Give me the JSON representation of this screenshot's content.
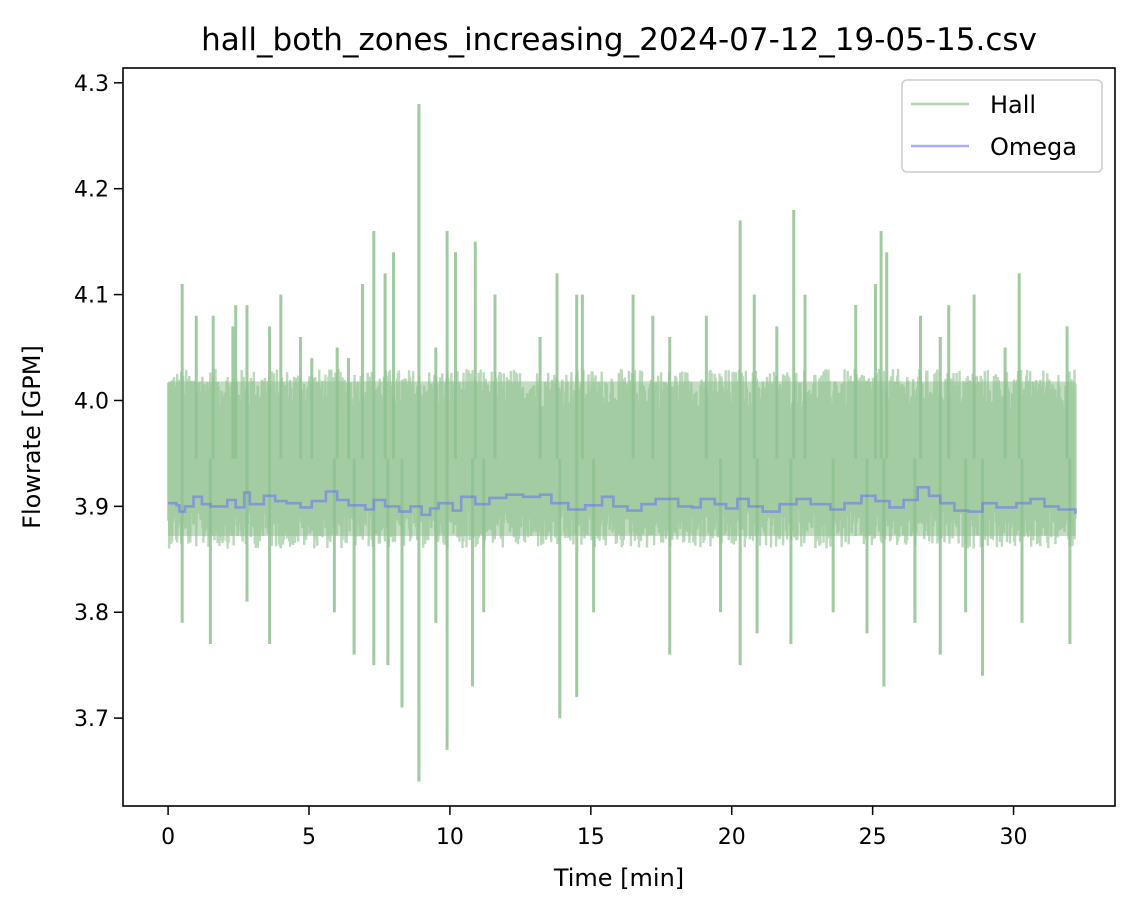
{
  "chart_data": {
    "type": "line",
    "title": "hall_both_zones_increasing_2024-07-12_19-05-15.csv",
    "xlabel": "Time [min]",
    "ylabel": "Flowrate [GPM]",
    "xlim": [
      -1.6,
      33.6
    ],
    "ylim": [
      3.617,
      4.314
    ],
    "xticks": [
      0,
      5,
      10,
      15,
      20,
      25,
      30
    ],
    "yticks": [
      3.7,
      3.8,
      3.9,
      4.0,
      4.1,
      4.2,
      4.3
    ],
    "xtick_labels": [
      "0",
      "5",
      "10",
      "15",
      "20",
      "25",
      "30"
    ],
    "ytick_labels": [
      "3.7",
      "3.8",
      "3.9",
      "4.0",
      "4.1",
      "4.2",
      "4.3"
    ],
    "grid": false,
    "legend": {
      "position": "top-right",
      "entries": [
        "Hall",
        "Omega"
      ]
    },
    "colors": {
      "Hall": "#8fc18f",
      "Omega": "#6666ff"
    },
    "hall_band": {
      "x_start": 0.0,
      "x_end": 32.2,
      "typical_low": 3.86,
      "typical_high": 4.03
    },
    "series": [
      {
        "name": "Hall",
        "note": "noisy signal; upper/lower spike peaks read from plot",
        "spikes_high": [
          [
            0.5,
            4.11
          ],
          [
            1.0,
            4.08
          ],
          [
            1.6,
            4.08
          ],
          [
            2.3,
            4.07
          ],
          [
            2.4,
            4.09
          ],
          [
            2.8,
            4.09
          ],
          [
            3.6,
            4.07
          ],
          [
            4.0,
            4.1
          ],
          [
            4.7,
            4.06
          ],
          [
            5.1,
            4.04
          ],
          [
            6.0,
            4.05
          ],
          [
            6.4,
            4.04
          ],
          [
            6.9,
            4.11
          ],
          [
            7.3,
            4.16
          ],
          [
            7.7,
            4.12
          ],
          [
            8.0,
            4.14
          ],
          [
            8.9,
            4.28
          ],
          [
            9.5,
            4.05
          ],
          [
            9.9,
            4.16
          ],
          [
            10.2,
            4.14
          ],
          [
            10.9,
            4.15
          ],
          [
            11.6,
            4.1
          ],
          [
            13.2,
            4.06
          ],
          [
            13.8,
            4.12
          ],
          [
            14.5,
            4.1
          ],
          [
            14.7,
            4.1
          ],
          [
            16.5,
            4.1
          ],
          [
            17.2,
            4.08
          ],
          [
            17.8,
            4.06
          ],
          [
            19.1,
            4.08
          ],
          [
            20.3,
            4.17
          ],
          [
            20.8,
            4.1
          ],
          [
            21.6,
            4.07
          ],
          [
            22.2,
            4.18
          ],
          [
            22.6,
            4.1
          ],
          [
            24.4,
            4.09
          ],
          [
            25.1,
            4.11
          ],
          [
            25.3,
            4.16
          ],
          [
            25.5,
            4.14
          ],
          [
            26.7,
            4.08
          ],
          [
            27.4,
            4.06
          ],
          [
            27.7,
            4.09
          ],
          [
            28.6,
            4.1
          ],
          [
            29.7,
            4.05
          ],
          [
            30.2,
            4.12
          ],
          [
            31.9,
            4.07
          ]
        ],
        "spikes_low": [
          [
            0.5,
            3.79
          ],
          [
            1.5,
            3.77
          ],
          [
            2.8,
            3.81
          ],
          [
            3.6,
            3.77
          ],
          [
            5.9,
            3.8
          ],
          [
            6.6,
            3.76
          ],
          [
            7.3,
            3.75
          ],
          [
            7.8,
            3.75
          ],
          [
            8.3,
            3.71
          ],
          [
            8.9,
            3.64
          ],
          [
            9.5,
            3.79
          ],
          [
            9.9,
            3.67
          ],
          [
            10.8,
            3.73
          ],
          [
            11.2,
            3.8
          ],
          [
            13.9,
            3.7
          ],
          [
            14.5,
            3.72
          ],
          [
            15.1,
            3.8
          ],
          [
            17.8,
            3.76
          ],
          [
            19.6,
            3.8
          ],
          [
            20.3,
            3.75
          ],
          [
            20.9,
            3.78
          ],
          [
            22.1,
            3.77
          ],
          [
            23.6,
            3.8
          ],
          [
            24.8,
            3.78
          ],
          [
            25.4,
            3.73
          ],
          [
            26.5,
            3.79
          ],
          [
            27.4,
            3.76
          ],
          [
            28.3,
            3.8
          ],
          [
            28.9,
            3.74
          ],
          [
            30.3,
            3.79
          ],
          [
            32.0,
            3.77
          ]
        ]
      },
      {
        "name": "Omega",
        "points": [
          [
            0.0,
            3.903
          ],
          [
            0.3,
            3.901
          ],
          [
            0.4,
            3.895
          ],
          [
            0.6,
            3.9
          ],
          [
            0.9,
            3.909
          ],
          [
            1.2,
            3.902
          ],
          [
            1.5,
            3.9
          ],
          [
            2.1,
            3.906
          ],
          [
            2.4,
            3.899
          ],
          [
            2.7,
            3.913
          ],
          [
            2.9,
            3.902
          ],
          [
            3.4,
            3.91
          ],
          [
            3.8,
            3.905
          ],
          [
            4.2,
            3.903
          ],
          [
            4.7,
            3.899
          ],
          [
            5.1,
            3.905
          ],
          [
            5.6,
            3.914
          ],
          [
            6.0,
            3.906
          ],
          [
            6.4,
            3.901
          ],
          [
            7.0,
            3.897
          ],
          [
            7.3,
            3.906
          ],
          [
            7.7,
            3.9
          ],
          [
            8.2,
            3.895
          ],
          [
            8.6,
            3.9
          ],
          [
            9.0,
            3.892
          ],
          [
            9.3,
            3.898
          ],
          [
            9.6,
            3.903
          ],
          [
            10.1,
            3.896
          ],
          [
            10.4,
            3.909
          ],
          [
            10.9,
            3.902
          ],
          [
            11.4,
            3.908
          ],
          [
            12.0,
            3.911
          ],
          [
            12.6,
            3.909
          ],
          [
            13.2,
            3.911
          ],
          [
            13.6,
            3.903
          ],
          [
            14.2,
            3.897
          ],
          [
            14.8,
            3.901
          ],
          [
            15.4,
            3.909
          ],
          [
            15.8,
            3.9
          ],
          [
            16.3,
            3.896
          ],
          [
            16.8,
            3.902
          ],
          [
            17.3,
            3.907
          ],
          [
            18.1,
            3.9
          ],
          [
            18.6,
            3.899
          ],
          [
            18.9,
            3.907
          ],
          [
            19.4,
            3.902
          ],
          [
            19.8,
            3.898
          ],
          [
            20.2,
            3.907
          ],
          [
            20.6,
            3.9
          ],
          [
            21.1,
            3.895
          ],
          [
            21.7,
            3.902
          ],
          [
            22.3,
            3.907
          ],
          [
            22.8,
            3.902
          ],
          [
            23.5,
            3.897
          ],
          [
            24.0,
            3.903
          ],
          [
            24.6,
            3.91
          ],
          [
            25.1,
            3.905
          ],
          [
            25.6,
            3.899
          ],
          [
            26.1,
            3.906
          ],
          [
            26.6,
            3.918
          ],
          [
            27.0,
            3.91
          ],
          [
            27.4,
            3.903
          ],
          [
            27.9,
            3.896
          ],
          [
            28.4,
            3.895
          ],
          [
            28.9,
            3.903
          ],
          [
            29.4,
            3.899
          ],
          [
            30.1,
            3.903
          ],
          [
            30.6,
            3.907
          ],
          [
            31.1,
            3.9
          ],
          [
            31.6,
            3.897
          ],
          [
            32.2,
            3.893
          ]
        ]
      }
    ]
  }
}
